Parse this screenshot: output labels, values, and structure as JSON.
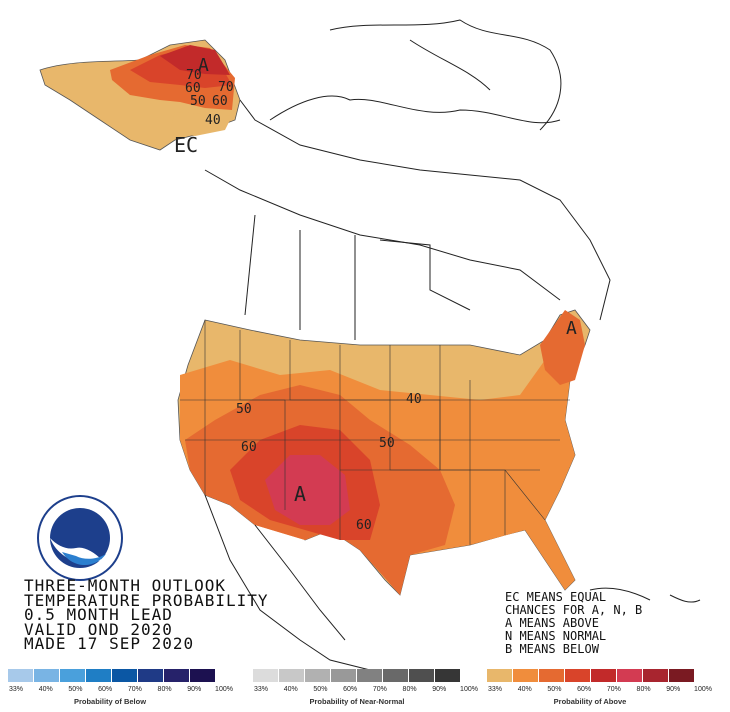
{
  "outlook": {
    "line1": "THREE-MONTH OUTLOOK",
    "line2": "TEMPERATURE PROBABILITY",
    "line3": "0.5 MONTH LEAD",
    "line4": "VALID OND 2020",
    "line5": "MADE 17 SEP 2020"
  },
  "legend_notes": {
    "line1": "EC MEANS EQUAL",
    "line2": "CHANCES FOR A, N, B",
    "line3": "A MEANS ABOVE",
    "line4": "N MEANS NORMAL",
    "line5": "B MEANS BELOW"
  },
  "map_labels": {
    "alaska_A": "A",
    "alaska_70": "70",
    "alaska_70b": "70",
    "alaska_60": "60",
    "alaska_60b": "60",
    "alaska_50": "50",
    "alaska_40": "40",
    "alaska_EC": "EC",
    "ne_A": "A",
    "sw_A": "A",
    "c_40": "40",
    "w_50": "50",
    "c_50": "50",
    "w_60": "60",
    "s_60": "60"
  },
  "scales": {
    "below": {
      "title": "Probability of Below",
      "ticks": [
        "33%",
        "40%",
        "50%",
        "60%",
        "70%",
        "80%",
        "90%",
        "100%"
      ],
      "colors": [
        "#a7c9ea",
        "#79b4e4",
        "#4aa0dc",
        "#1f7ec5",
        "#0b57a4",
        "#1f3a86",
        "#26226a",
        "#1c1150"
      ]
    },
    "normal": {
      "title": "Probability of Near-Normal",
      "ticks": [
        "33%",
        "40%",
        "50%",
        "60%",
        "70%",
        "80%",
        "90%",
        "100%"
      ],
      "colors": [
        "#dcdcdc",
        "#c8c8c8",
        "#b1b1b1",
        "#999999",
        "#818181",
        "#696969",
        "#4f4f4f",
        "#363636"
      ]
    },
    "above": {
      "title": "Probability of Above",
      "ticks": [
        "33%",
        "40%",
        "50%",
        "60%",
        "70%",
        "80%",
        "90%",
        "100%"
      ],
      "colors": [
        "#e8b76b",
        "#f08d3c",
        "#e56a31",
        "#d9442a",
        "#c22a2a",
        "#d33b52",
        "#a8252f",
        "#7a1a22"
      ]
    }
  }
}
